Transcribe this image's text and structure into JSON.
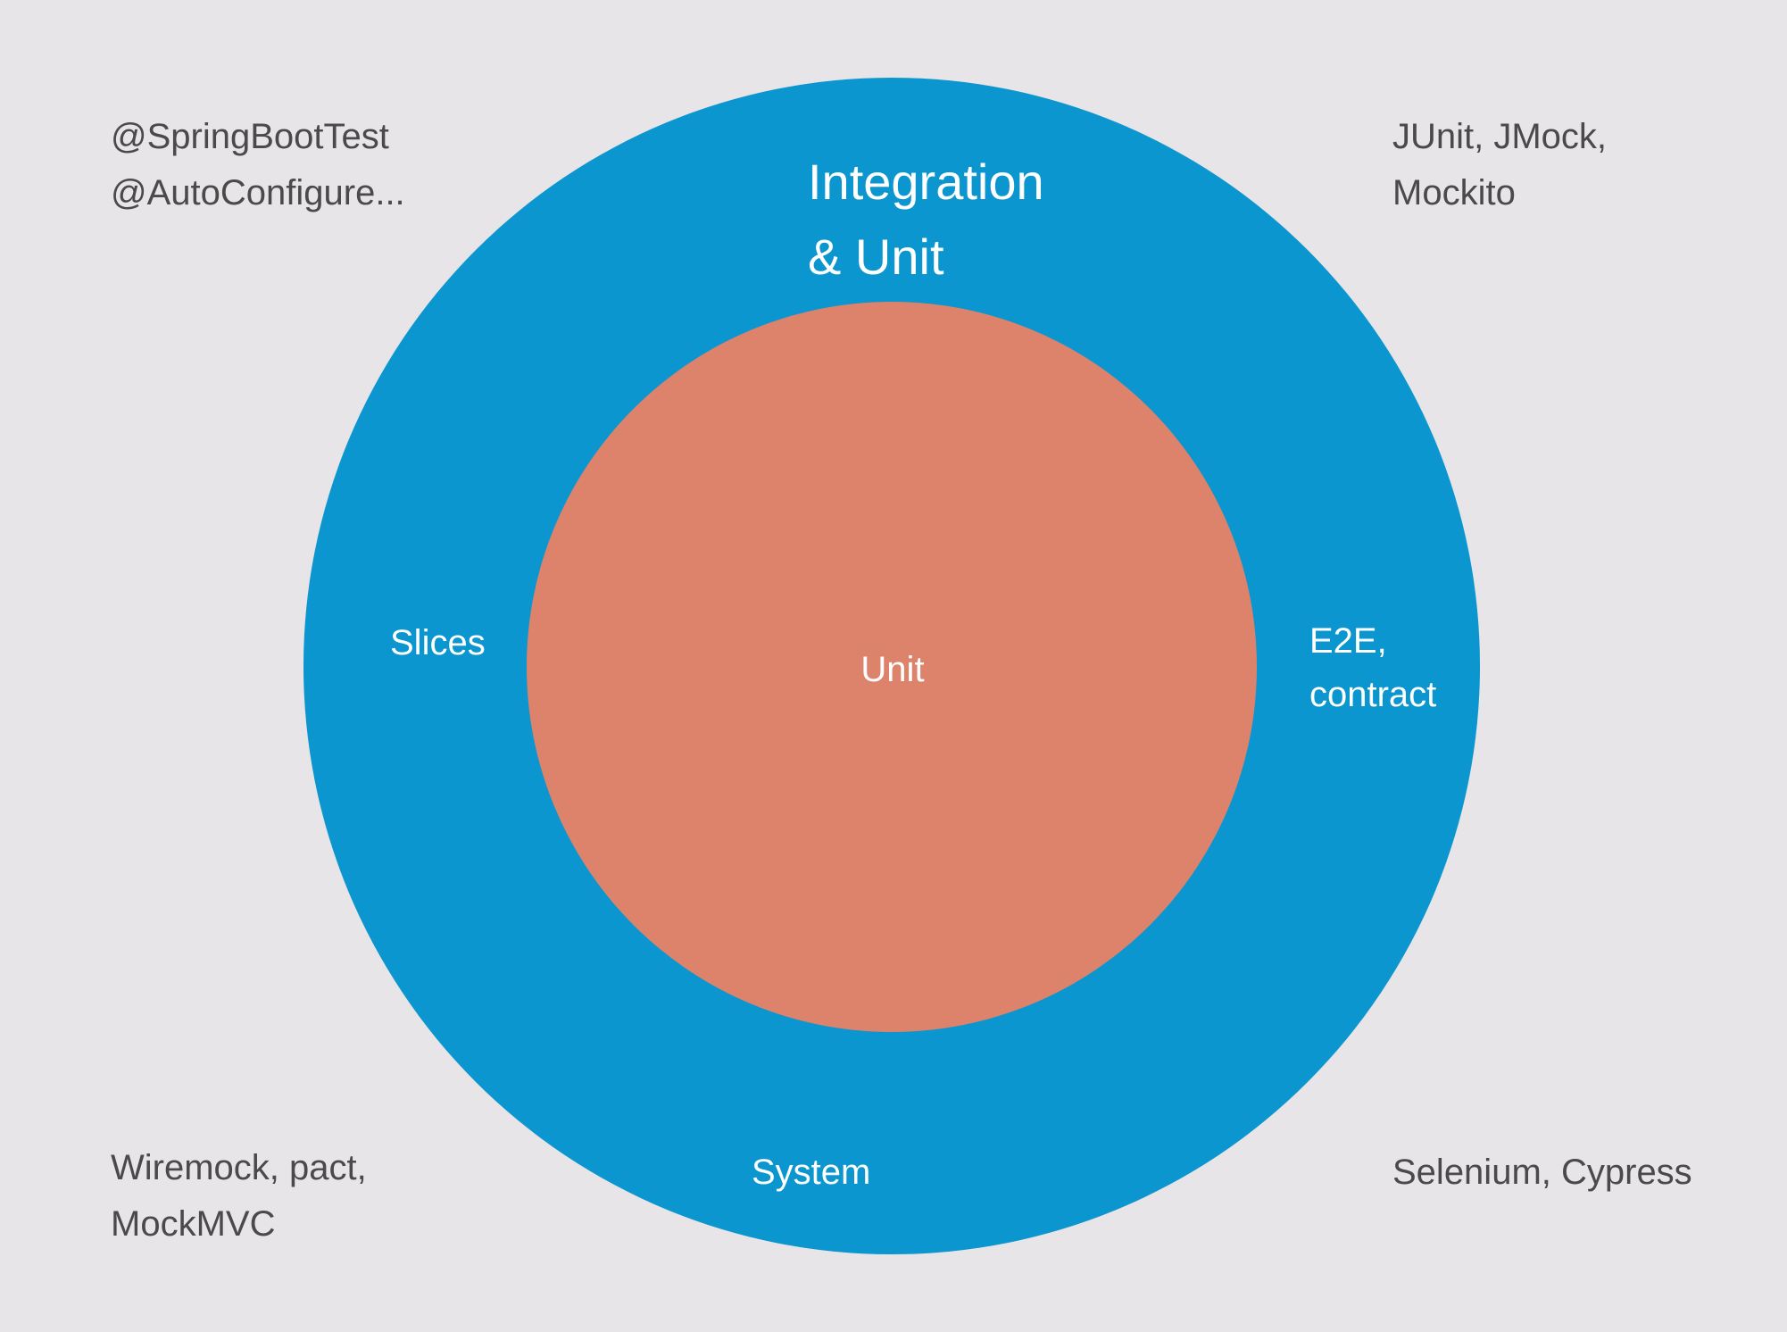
{
  "colors": {
    "background": "#e8e5e8",
    "outer_ring": "#0b96cf",
    "inner_circle": "#dd836b",
    "label_text": "#ffffff",
    "tool_text": "#4a4a4a"
  },
  "outer_ring": {
    "title": "Integration\n& Unit",
    "left_label": "Slices",
    "right_label": "E2E,\ncontract",
    "bottom_label": "System"
  },
  "inner_circle": {
    "label": "Unit"
  },
  "tools": {
    "top_left": "@SpringBootTest\n@AutoConfigure...",
    "top_right": "JUnit, JMock,\nMockito",
    "bottom_left": "Wiremock, pact,\nMockMVC",
    "bottom_right": "Selenium, Cypress"
  }
}
